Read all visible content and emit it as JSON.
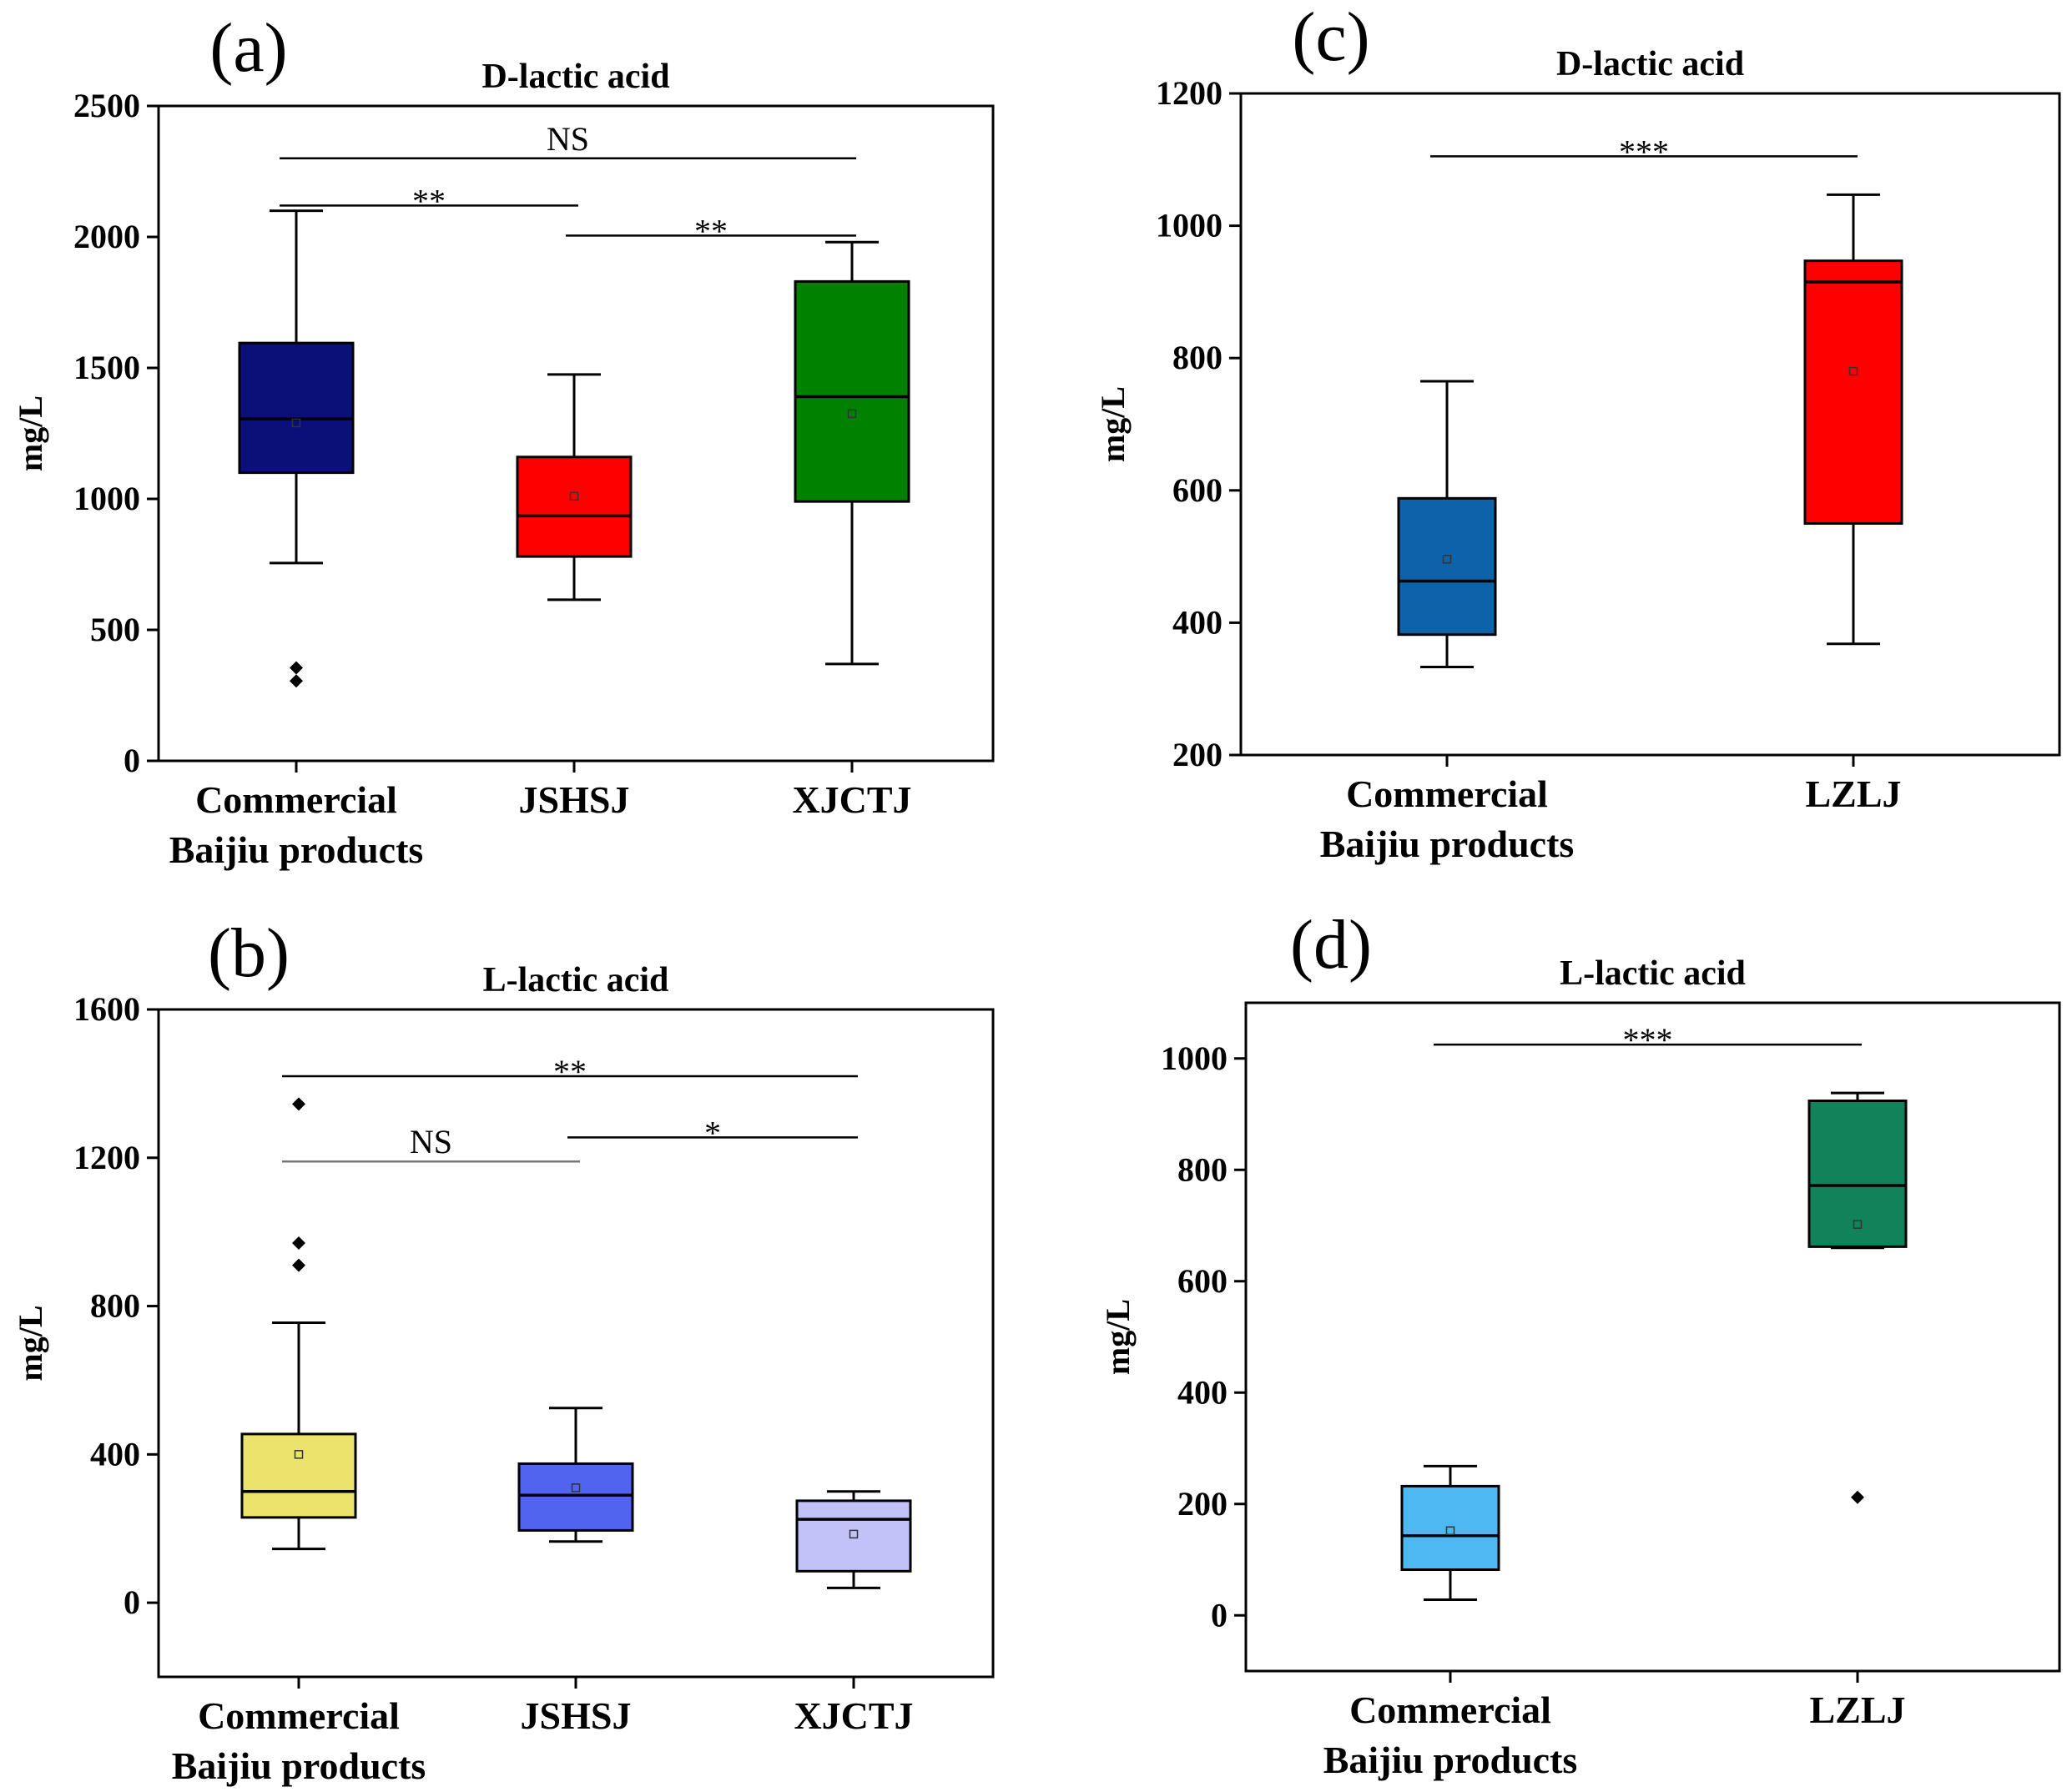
{
  "chart_data": [
    {
      "panel": "(a)",
      "type": "box",
      "title": "D-lactic acid",
      "ylabel": "mg/L",
      "ylim": [
        0,
        2500
      ],
      "yticks": [
        0,
        500,
        1000,
        1500,
        2000,
        2500
      ],
      "categories": [
        {
          "label_lines": [
            "Commercial",
            "Baijiu products"
          ],
          "color": "#0b1078",
          "whisker_low": 755,
          "q1": 1100,
          "median": 1305,
          "q3": 1595,
          "whisker_high": 2100,
          "mean": 1290,
          "outliers": [
            305,
            355
          ]
        },
        {
          "label_lines": [
            "JSHSJ"
          ],
          "color": "#ff0000",
          "whisker_low": 615,
          "q1": 780,
          "median": 935,
          "q3": 1160,
          "whisker_high": 1475,
          "mean": 1010,
          "outliers": []
        },
        {
          "label_lines": [
            "XJCTJ"
          ],
          "color": "#008200",
          "whisker_low": 370,
          "q1": 990,
          "median": 1390,
          "q3": 1830,
          "whisker_high": 1980,
          "mean": 1325,
          "outliers": []
        }
      ],
      "significance": [
        {
          "from": 0,
          "to": 2,
          "value": 2300,
          "label": "NS"
        },
        {
          "from": 0,
          "to": 1,
          "value": 2120,
          "label": "**"
        },
        {
          "from": 1,
          "to": 2,
          "value": 2005,
          "label": "**"
        }
      ]
    },
    {
      "panel": "(b)",
      "type": "box",
      "title": "L-lactic acid",
      "ylabel": "mg/L",
      "ylim": [
        -200,
        1600
      ],
      "yticks": [
        0,
        400,
        800,
        1200,
        1600
      ],
      "categories": [
        {
          "label_lines": [
            "Commercial",
            "Baijiu products"
          ],
          "color": "#eae46c",
          "whisker_low": 145,
          "q1": 230,
          "median": 300,
          "q3": 455,
          "whisker_high": 755,
          "mean": 400,
          "outliers": [
            910,
            970,
            1345
          ]
        },
        {
          "label_lines": [
            "JSHSJ"
          ],
          "color": "#5164f0",
          "whisker_low": 165,
          "q1": 195,
          "median": 290,
          "q3": 375,
          "whisker_high": 525,
          "mean": 310,
          "outliers": []
        },
        {
          "label_lines": [
            "XJCTJ"
          ],
          "color": "#c0c2f8",
          "whisker_low": 40,
          "q1": 85,
          "median": 225,
          "q3": 275,
          "whisker_high": 300,
          "mean": 185,
          "outliers": []
        }
      ],
      "significance": [
        {
          "from": 0,
          "to": 2,
          "value": 1420,
          "label": "**"
        },
        {
          "from": 0,
          "to": 1,
          "value": 1190,
          "label": "NS"
        },
        {
          "from": 1,
          "to": 2,
          "value": 1255,
          "label": "*"
        }
      ]
    },
    {
      "panel": "(c)",
      "type": "box",
      "title": "D-lactic acid",
      "ylabel": "mg/L",
      "ylim": [
        200,
        1200
      ],
      "yticks": [
        200,
        400,
        600,
        800,
        1000,
        1200
      ],
      "categories": [
        {
          "label_lines": [
            "Commercial",
            "Baijiu products"
          ],
          "color": "#0e62a8",
          "whisker_low": 333,
          "q1": 382,
          "median": 463,
          "q3": 588,
          "whisker_high": 765,
          "mean": 496,
          "outliers": []
        },
        {
          "label_lines": [
            "LZLJ"
          ],
          "color": "#ff0000",
          "whisker_low": 368,
          "q1": 550,
          "median": 915,
          "q3": 947,
          "whisker_high": 1047,
          "mean": 780,
          "outliers": []
        }
      ],
      "significance": [
        {
          "from": 0,
          "to": 1,
          "value": 1105,
          "label": "***"
        }
      ]
    },
    {
      "panel": "(d)",
      "type": "box",
      "title": "L-lactic acid",
      "ylabel": "mg/L",
      "ylim": [
        -100,
        1100
      ],
      "yticks": [
        0,
        200,
        400,
        600,
        800,
        1000
      ],
      "categories": [
        {
          "label_lines": [
            "Commercial",
            "Baijiu products"
          ],
          "color": "#4db8f2",
          "whisker_low": 28,
          "q1": 82,
          "median": 143,
          "q3": 232,
          "whisker_high": 268,
          "mean": 152,
          "outliers": []
        },
        {
          "label_lines": [
            "LZLJ"
          ],
          "color": "#118259",
          "whisker_low": 660,
          "q1": 662,
          "median": 772,
          "q3": 924,
          "whisker_high": 938,
          "mean": 702,
          "outliers": [
            212
          ]
        }
      ],
      "significance": [
        {
          "from": 0,
          "to": 1,
          "value": 1025,
          "label": "***"
        }
      ]
    }
  ]
}
